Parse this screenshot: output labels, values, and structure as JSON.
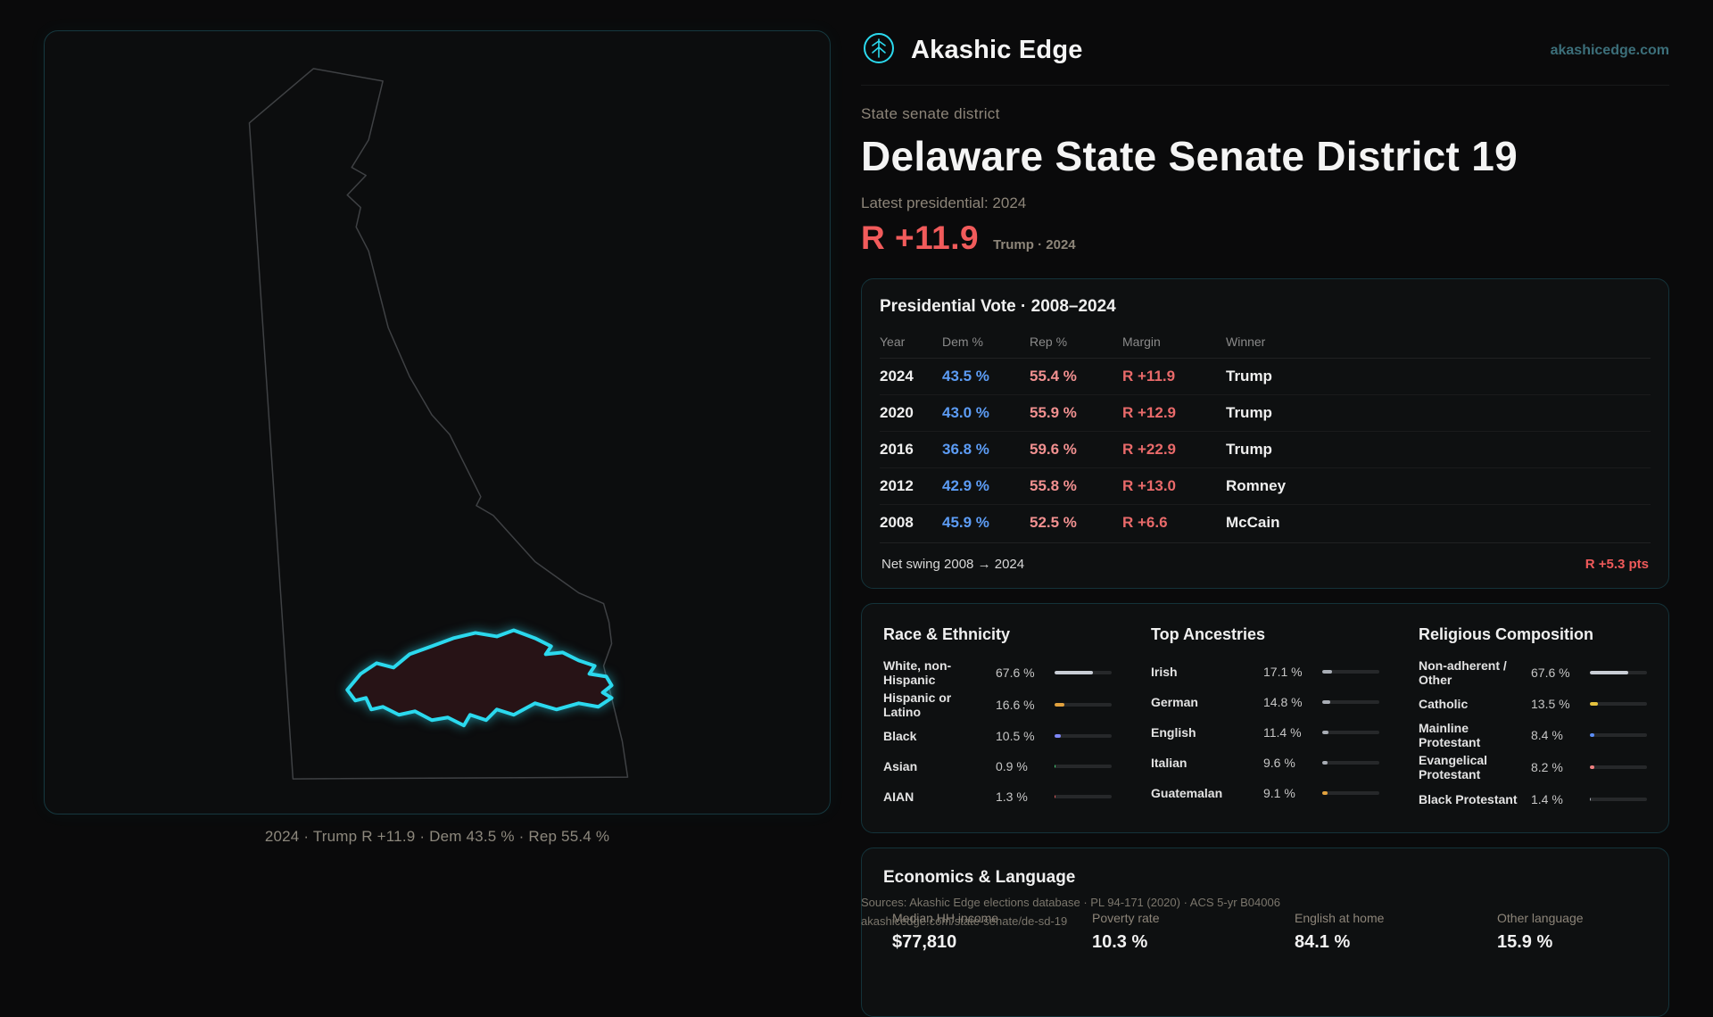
{
  "brand": {
    "name": "Akashic Edge",
    "domain": "akashicedge.com"
  },
  "header": {
    "kicker": "State senate district",
    "title": "Delaware State Senate District 19",
    "latest_label": "Latest presidential: 2024",
    "margin_big": "R +11.9",
    "margin_context": "Trump · 2024"
  },
  "map": {
    "caption": "2024 · Trump R +11.9 · Dem 43.5 % · Rep 55.4 %",
    "accent_color": "#2bd9ee",
    "district_fill": "#271316"
  },
  "vote_card": {
    "title": "Presidential Vote · 2008–2024",
    "columns": [
      "Year",
      "Dem %",
      "Rep %",
      "Margin",
      "Winner"
    ],
    "rows": [
      {
        "year": "2024",
        "dem": "43.5 %",
        "rep": "55.4 %",
        "margin": "R +11.9",
        "winner": "Trump"
      },
      {
        "year": "2020",
        "dem": "43.0 %",
        "rep": "55.9 %",
        "margin": "R +12.9",
        "winner": "Trump"
      },
      {
        "year": "2016",
        "dem": "36.8 %",
        "rep": "59.6 %",
        "margin": "R +22.9",
        "winner": "Trump"
      },
      {
        "year": "2012",
        "dem": "42.9 %",
        "rep": "55.8 %",
        "margin": "R +13.0",
        "winner": "Romney"
      },
      {
        "year": "2008",
        "dem": "45.9 %",
        "rep": "52.5 %",
        "margin": "R +6.6",
        "winner": "McCain"
      }
    ],
    "net_swing_label": "Net swing 2008 → 2024",
    "net_swing_value": "R +5.3 pts"
  },
  "demographics": {
    "race": {
      "title": "Race & Ethnicity",
      "rows": [
        {
          "label": "White, non-Hispanic",
          "value": "67.6 %",
          "pct": 67.6,
          "color": "#c9ced6"
        },
        {
          "label": "Hispanic or Latino",
          "value": "16.6 %",
          "pct": 16.6,
          "color": "#e2a23e"
        },
        {
          "label": "Black",
          "value": "10.5 %",
          "pct": 10.5,
          "color": "#7d86f5"
        },
        {
          "label": "Asian",
          "value": "0.9 %",
          "pct": 0.9,
          "color": "#46d97a"
        },
        {
          "label": "AIAN",
          "value": "1.3 %",
          "pct": 1.3,
          "color": "#e25c5c"
        }
      ]
    },
    "ancestries": {
      "title": "Top Ancestries",
      "rows": [
        {
          "label": "Irish",
          "value": "17.1 %",
          "pct": 17.1,
          "color": "#a8adb5"
        },
        {
          "label": "German",
          "value": "14.8 %",
          "pct": 14.8,
          "color": "#a8adb5"
        },
        {
          "label": "English",
          "value": "11.4 %",
          "pct": 11.4,
          "color": "#a8adb5"
        },
        {
          "label": "Italian",
          "value": "9.6 %",
          "pct": 9.6,
          "color": "#a8adb5"
        },
        {
          "label": "Guatemalan",
          "value": "9.1 %",
          "pct": 9.1,
          "color": "#e2a23e"
        }
      ]
    },
    "religion": {
      "title": "Religious Composition",
      "rows": [
        {
          "label": "Non-adherent / Other",
          "value": "67.6 %",
          "pct": 67.6,
          "color": "#c9ced6"
        },
        {
          "label": "Catholic",
          "value": "13.5 %",
          "pct": 13.5,
          "color": "#e5c23e"
        },
        {
          "label": "Mainline Protestant",
          "value": "8.4 %",
          "pct": 8.4,
          "color": "#5b8df5"
        },
        {
          "label": "Evangelical Protestant",
          "value": "8.2 %",
          "pct": 8.2,
          "color": "#ef8080"
        },
        {
          "label": "Black Protestant",
          "value": "1.4 %",
          "pct": 1.4,
          "color": "#a8adb5"
        }
      ]
    }
  },
  "economics": {
    "title": "Economics & Language",
    "stats": [
      {
        "label": "Median HH income",
        "value": "$77,810"
      },
      {
        "label": "Poverty rate",
        "value": "10.3 %"
      },
      {
        "label": "English at home",
        "value": "84.1 %"
      },
      {
        "label": "Other language",
        "value": "15.9 %"
      }
    ]
  },
  "footer": {
    "sources": "Sources: Akashic Edge elections database · PL 94-171 (2020) · ACS 5-yr B04006",
    "permalink": "akashicedge.com/state-senate/de-sd-19"
  }
}
